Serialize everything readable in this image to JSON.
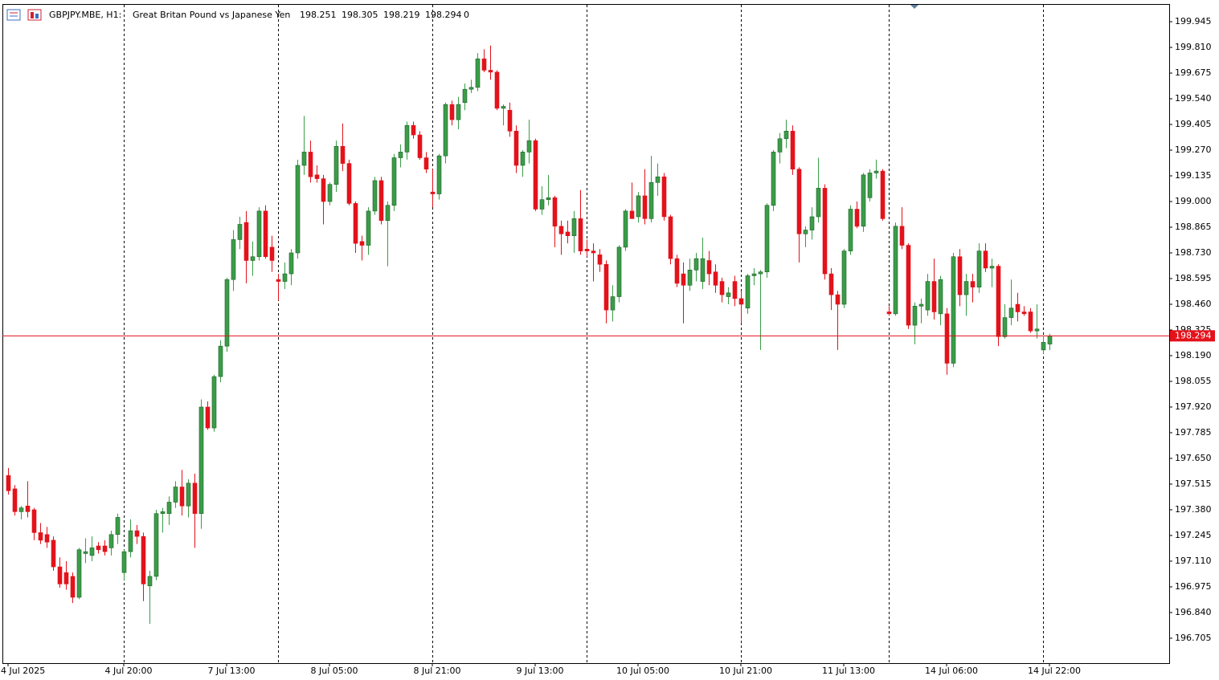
{
  "chart_data": {
    "type": "candlestick",
    "symbol": "GBPJPY.MBE, H1:",
    "description": "Great Britan Pound vs Japanese Yen",
    "header_extra": 0,
    "up_color": "#3a9d48",
    "down_color": "#e3121b",
    "price_line_color": "#e3121b",
    "grid": false,
    "ylim": [
      196.574,
      200.038
    ],
    "yticks": [
      199.945,
      {
        "value": 199.81,
        "label": "199.810"
      },
      199.675,
      {
        "value": 199.54,
        "label": "199.540"
      },
      199.405,
      {
        "value": 199.27,
        "label": "199.270"
      },
      199.135,
      {
        "value": 199.0,
        "label": "199.000"
      },
      198.865,
      {
        "value": 198.73,
        "label": "198.730"
      },
      198.595,
      {
        "value": 198.46,
        "label": "198.460"
      },
      198.325,
      {
        "value": 198.19,
        "label": "198.190"
      },
      198.055,
      {
        "value": 197.92,
        "label": "197.920"
      },
      197.785,
      {
        "value": 197.65,
        "label": "197.650"
      },
      197.515,
      {
        "value": 197.38,
        "label": "197.380"
      },
      197.245,
      {
        "value": 197.11,
        "label": "197.110"
      },
      196.975,
      {
        "value": 196.84,
        "label": "196.840"
      },
      196.705
    ],
    "categories": [
      "4 Jul 2025",
      null,
      null,
      null,
      null,
      null,
      null,
      null,
      null,
      null,
      null,
      null,
      null,
      null,
      null,
      null,
      null,
      null,
      "4 Jul 20:00",
      null,
      null,
      null,
      null,
      null,
      null,
      null,
      null,
      null,
      null,
      null,
      null,
      null,
      null,
      null,
      "7 Jul 13:00",
      null,
      null,
      null,
      null,
      null,
      null,
      null,
      null,
      null,
      null,
      null,
      null,
      null,
      null,
      null,
      "8 Jul 05:00",
      null,
      null,
      null,
      null,
      null,
      null,
      null,
      null,
      null,
      null,
      null,
      null,
      null,
      null,
      null,
      "8 Jul 21:00",
      null,
      null,
      null,
      null,
      null,
      null,
      null,
      null,
      null,
      null,
      null,
      null,
      null,
      null,
      null,
      "9 Jul 13:00",
      null,
      null,
      null,
      null,
      null,
      null,
      null,
      null,
      null,
      null,
      null,
      null,
      null,
      null,
      null,
      "10 Jul 05:00",
      null,
      null,
      null,
      null,
      null,
      null,
      null,
      null,
      null,
      null,
      null,
      null,
      null,
      null,
      null,
      "10 Jul 21:00",
      null,
      null,
      null,
      null,
      null,
      null,
      null,
      null,
      null,
      null,
      null,
      null,
      null,
      null,
      null,
      "11 Jul 13:00",
      null,
      null,
      null,
      null,
      null,
      null,
      null,
      null,
      null,
      null,
      null,
      null,
      null,
      null,
      null,
      "14 Jul 06:00",
      null,
      null,
      null,
      null,
      null,
      null,
      null,
      null,
      null,
      null,
      null,
      null,
      null,
      null,
      null,
      "14 Jul 22:00"
    ],
    "open": [
      197.56,
      197.49,
      197.37,
      197.4,
      197.38,
      197.26,
      197.25,
      197.22,
      197.08,
      197.05,
      197.03,
      196.92,
      197.15,
      197.14,
      197.19,
      197.19,
      197.18,
      197.25,
      197.05,
      197.16,
      197.27,
      197.24,
      196.98,
      197.03,
      197.36,
      197.36,
      197.42,
      197.5,
      197.4,
      197.52,
      197.36,
      197.92,
      197.81,
      198.08,
      198.24,
      198.59,
      198.8,
      198.89,
      198.69,
      198.71,
      198.95,
      198.76,
      198.59,
      198.58,
      198.62,
      198.73,
      199.19,
      199.26,
      199.14,
      199.12,
      199.0,
      199.09,
      199.29,
      199.2,
      198.99,
      198.79,
      198.77,
      198.95,
      199.11,
      198.9,
      198.98,
      199.23,
      199.26,
      199.4,
      199.35,
      199.23,
      199.05,
      199.04,
      199.24,
      199.51,
      199.43,
      199.52,
      199.59,
      199.6,
      199.75,
      199.69,
      199.68,
      199.49,
      199.48,
      199.37,
      199.19,
      199.26,
      199.32,
      198.96,
      199.01,
      199.02,
      198.87,
      198.84,
      198.82,
      198.91,
      198.75,
      198.74,
      198.72,
      198.67,
      198.43,
      198.5,
      198.76,
      198.95,
      198.92,
      199.03,
      198.91,
      199.1,
      199.13,
      198.92,
      198.7,
      198.62,
      198.56,
      198.64,
      198.58,
      198.69,
      198.63,
      198.58,
      198.5,
      198.58,
      198.49,
      198.44,
      198.61,
      198.62,
      198.63,
      198.98,
      199.26,
      199.33,
      199.37,
      199.17,
      198.83,
      198.85,
      198.92,
      199.07,
      198.62,
      198.51,
      198.46,
      198.74,
      198.96,
      198.87,
      199.02,
      199.15,
      199.16,
      198.42,
      198.41,
      198.87,
      198.77,
      198.35,
      198.45,
      198.43,
      198.58,
      198.41,
      198.41,
      198.15,
      198.71,
      198.51,
      198.58,
      198.55,
      198.74,
      198.65,
      198.66,
      198.29,
      198.39,
      198.46,
      198.42,
      198.42,
      198.32,
      198.22,
      198.251
    ],
    "high": [
      197.6,
      197.51,
      197.4,
      197.53,
      197.39,
      197.31,
      197.29,
      197.24,
      197.13,
      197.11,
      197.05,
      197.18,
      197.23,
      197.24,
      197.21,
      197.22,
      197.27,
      197.36,
      197.17,
      197.33,
      197.3,
      197.26,
      197.06,
      197.38,
      197.39,
      197.45,
      197.53,
      197.59,
      197.54,
      197.57,
      197.96,
      197.95,
      198.09,
      198.27,
      198.6,
      198.85,
      198.92,
      198.95,
      198.79,
      198.97,
      198.98,
      198.82,
      198.62,
      198.68,
      198.75,
      199.22,
      199.45,
      199.32,
      199.19,
      199.14,
      199.1,
      199.32,
      199.41,
      199.22,
      199.0,
      198.82,
      198.97,
      199.13,
      199.13,
      199.0,
      199.25,
      199.3,
      199.42,
      199.42,
      199.37,
      199.26,
      199.17,
      199.25,
      199.52,
      199.53,
      199.55,
      199.62,
      199.64,
      199.78,
      199.8,
      199.82,
      199.69,
      199.51,
      199.52,
      199.4,
      199.27,
      199.43,
      199.33,
      199.08,
      199.14,
      199.03,
      198.9,
      198.9,
      198.95,
      199.06,
      198.8,
      198.78,
      198.75,
      198.69,
      198.56,
      198.77,
      198.96,
      199.1,
      199.05,
      199.17,
      199.24,
      199.2,
      199.15,
      198.93,
      198.72,
      198.68,
      198.7,
      198.73,
      198.81,
      198.74,
      198.67,
      198.6,
      198.55,
      198.61,
      198.53,
      198.62,
      198.65,
      198.64,
      198.99,
      199.27,
      199.36,
      199.43,
      199.4,
      199.18,
      198.87,
      198.97,
      199.23,
      199.09,
      198.65,
      198.53,
      198.75,
      198.98,
      199.0,
      199.15,
      199.17,
      199.22,
      199.17,
      198.45,
      198.89,
      198.97,
      198.78,
      198.47,
      198.49,
      198.62,
      198.7,
      198.61,
      198.44,
      198.73,
      198.75,
      198.62,
      198.62,
      198.78,
      198.78,
      198.7,
      198.67,
      198.46,
      198.59,
      198.52,
      198.45,
      198.44,
      198.46,
      198.29,
      198.305
    ],
    "low": [
      197.46,
      197.35,
      197.33,
      197.34,
      197.22,
      197.2,
      197.18,
      197.06,
      196.97,
      196.96,
      196.89,
      196.91,
      197.1,
      197.11,
      197.15,
      197.14,
      197.14,
      197.2,
      197.01,
      197.13,
      197.2,
      196.9,
      196.78,
      197.01,
      197.26,
      197.3,
      197.39,
      197.35,
      197.34,
      197.18,
      197.28,
      197.8,
      197.79,
      198.05,
      198.21,
      198.53,
      198.75,
      198.57,
      198.61,
      198.69,
      198.7,
      198.63,
      198.48,
      198.54,
      198.56,
      198.7,
      199.14,
      199.1,
      199.1,
      198.88,
      198.98,
      199.05,
      199.16,
      198.98,
      198.73,
      198.69,
      198.72,
      198.93,
      198.88,
      198.66,
      198.95,
      199.18,
      199.22,
      199.33,
      199.22,
      199.15,
      198.97,
      199.01,
      199.2,
      199.4,
      199.38,
      199.48,
      199.57,
      199.58,
      199.68,
      199.64,
      199.48,
      199.4,
      199.34,
      199.15,
      199.13,
      199.2,
      198.95,
      198.93,
      198.98,
      198.76,
      198.72,
      198.78,
      198.73,
      198.72,
      198.71,
      198.58,
      198.63,
      198.36,
      198.37,
      198.47,
      198.74,
      198.91,
      198.89,
      198.88,
      198.89,
      199.03,
      198.9,
      198.67,
      198.55,
      198.36,
      198.53,
      198.58,
      198.54,
      198.56,
      198.52,
      198.47,
      198.46,
      198.45,
      198.36,
      198.41,
      198.56,
      198.22,
      198.6,
      198.95,
      199.2,
      199.28,
      199.14,
      198.68,
      198.76,
      198.8,
      198.89,
      198.59,
      198.43,
      198.22,
      198.44,
      198.72,
      198.86,
      198.84,
      199.0,
      199.12,
      198.9,
      198.4,
      198.4,
      198.75,
      198.33,
      198.25,
      198.36,
      198.4,
      198.38,
      198.35,
      198.09,
      198.13,
      198.45,
      198.4,
      198.47,
      198.52,
      198.63,
      198.55,
      198.24,
      198.28,
      198.35,
      198.37,
      198.4,
      198.31,
      198.28,
      198.2,
      198.219
    ],
    "close": [
      197.48,
      197.37,
      197.39,
      197.37,
      197.26,
      197.22,
      197.21,
      197.08,
      196.99,
      196.99,
      196.92,
      197.17,
      197.16,
      197.18,
      197.17,
      197.16,
      197.25,
      197.34,
      197.16,
      197.27,
      197.24,
      196.99,
      197.03,
      197.36,
      197.37,
      197.42,
      197.5,
      197.4,
      197.52,
      197.36,
      197.92,
      197.81,
      198.08,
      198.24,
      198.59,
      198.8,
      198.88,
      198.69,
      198.71,
      198.95,
      198.71,
      198.69,
      198.58,
      198.62,
      198.73,
      199.19,
      199.26,
      199.13,
      199.12,
      199.0,
      199.09,
      199.29,
      199.2,
      198.99,
      198.78,
      198.77,
      198.95,
      199.11,
      198.9,
      198.98,
      199.23,
      199.26,
      199.4,
      199.35,
      199.23,
      199.17,
      199.04,
      199.24,
      199.51,
      199.43,
      199.51,
      199.59,
      199.6,
      199.75,
      199.69,
      199.68,
      199.49,
      199.5,
      199.37,
      199.19,
      199.26,
      199.32,
      198.96,
      199.01,
      199.02,
      198.87,
      198.83,
      198.82,
      198.91,
      198.74,
      198.74,
      198.73,
      198.67,
      198.43,
      198.5,
      198.76,
      198.95,
      198.91,
      199.03,
      198.91,
      199.1,
      199.13,
      198.92,
      198.7,
      198.57,
      198.56,
      198.64,
      198.7,
      198.7,
      198.62,
      198.56,
      198.51,
      198.52,
      198.49,
      198.46,
      198.61,
      198.62,
      198.63,
      198.98,
      199.26,
      199.33,
      199.37,
      199.17,
      198.83,
      198.85,
      198.92,
      199.07,
      198.62,
      198.51,
      198.46,
      198.74,
      198.96,
      198.87,
      199.14,
      199.15,
      199.16,
      198.91,
      198.41,
      198.87,
      198.77,
      198.35,
      198.45,
      198.46,
      198.58,
      198.42,
      198.59,
      198.15,
      198.71,
      198.51,
      198.58,
      198.55,
      198.74,
      198.65,
      198.66,
      198.29,
      198.39,
      198.44,
      198.42,
      198.41,
      198.32,
      198.33,
      198.26,
      198.294
    ]
  }
}
